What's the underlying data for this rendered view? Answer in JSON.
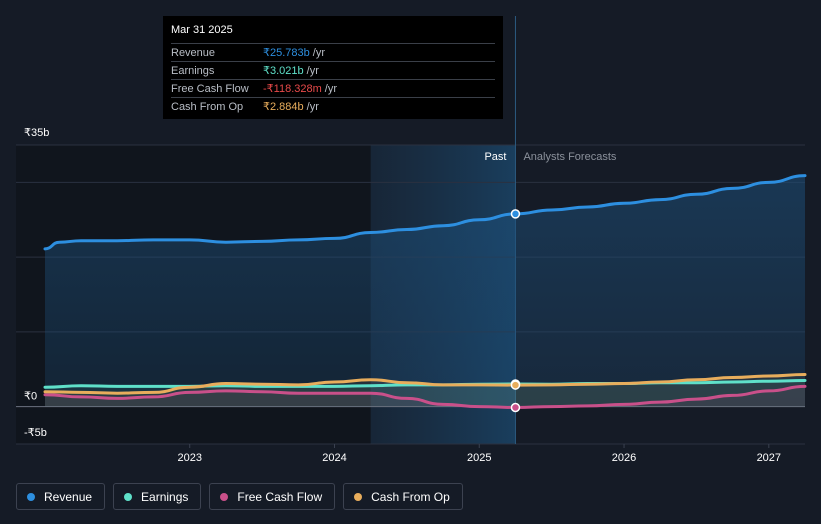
{
  "chart_data": {
    "type": "line",
    "y_unit_prefix": "₹",
    "ylim": [
      -5,
      35
    ],
    "y_ticks": [
      {
        "value": 35,
        "label": "₹35b"
      },
      {
        "value": 0,
        "label": "₹0"
      },
      {
        "value": -5,
        "label": "-₹5b"
      }
    ],
    "x_ticks": [
      {
        "value": 2023.0,
        "label": "2023"
      },
      {
        "value": 2024.0,
        "label": "2024"
      },
      {
        "value": 2025.0,
        "label": "2025"
      },
      {
        "value": 2026.0,
        "label": "2026"
      },
      {
        "value": 2027.0,
        "label": "2027"
      }
    ],
    "xlim": [
      2021.8,
      2027.25
    ],
    "past_label": "Past",
    "forecast_label": "Analysts Forecasts",
    "past_end_x": 2025.25,
    "highlight_start_x": 2024.25,
    "grid": true,
    "legend_position": "bottom-left",
    "series": [
      {
        "name": "Revenue",
        "color": "#2d8fe0",
        "fill": true,
        "points": [
          [
            2022.0,
            21.1
          ],
          [
            2022.1,
            22.0
          ],
          [
            2022.25,
            22.2
          ],
          [
            2022.5,
            22.2
          ],
          [
            2022.75,
            22.3
          ],
          [
            2023.0,
            22.3
          ],
          [
            2023.25,
            22.0
          ],
          [
            2023.5,
            22.1
          ],
          [
            2023.75,
            22.3
          ],
          [
            2024.0,
            22.5
          ],
          [
            2024.25,
            23.3
          ],
          [
            2024.5,
            23.7
          ],
          [
            2024.75,
            24.2
          ],
          [
            2025.0,
            25.0
          ],
          [
            2025.25,
            25.783
          ],
          [
            2025.5,
            26.3
          ],
          [
            2025.75,
            26.7
          ],
          [
            2026.0,
            27.2
          ],
          [
            2026.25,
            27.7
          ],
          [
            2026.5,
            28.4
          ],
          [
            2026.75,
            29.2
          ],
          [
            2027.0,
            30.0
          ],
          [
            2027.25,
            30.9
          ]
        ]
      },
      {
        "name": "Earnings",
        "color": "#5fe0c9",
        "fill": false,
        "points": [
          [
            2022.0,
            2.6
          ],
          [
            2022.25,
            2.8
          ],
          [
            2022.5,
            2.7
          ],
          [
            2022.75,
            2.7
          ],
          [
            2023.0,
            2.7
          ],
          [
            2023.25,
            2.8
          ],
          [
            2023.5,
            2.7
          ],
          [
            2023.75,
            2.7
          ],
          [
            2024.0,
            2.7
          ],
          [
            2024.25,
            2.8
          ],
          [
            2024.5,
            2.9
          ],
          [
            2024.75,
            2.9
          ],
          [
            2025.0,
            3.0
          ],
          [
            2025.25,
            3.021
          ],
          [
            2025.5,
            3.0
          ],
          [
            2025.75,
            3.1
          ],
          [
            2026.0,
            3.1
          ],
          [
            2026.25,
            3.2
          ],
          [
            2026.5,
            3.2
          ],
          [
            2026.75,
            3.3
          ],
          [
            2027.0,
            3.4
          ],
          [
            2027.25,
            3.5
          ]
        ]
      },
      {
        "name": "Free Cash Flow",
        "color": "#c9508a",
        "fill": false,
        "points": [
          [
            2022.0,
            1.6
          ],
          [
            2022.25,
            1.3
          ],
          [
            2022.5,
            1.1
          ],
          [
            2022.75,
            1.3
          ],
          [
            2023.0,
            1.9
          ],
          [
            2023.25,
            2.1
          ],
          [
            2023.5,
            2.0
          ],
          [
            2023.75,
            1.8
          ],
          [
            2024.0,
            1.8
          ],
          [
            2024.25,
            1.8
          ],
          [
            2024.5,
            1.1
          ],
          [
            2024.75,
            0.3
          ],
          [
            2025.0,
            0.0
          ],
          [
            2025.25,
            -0.118
          ],
          [
            2025.5,
            0.0
          ],
          [
            2025.75,
            0.1
          ],
          [
            2026.0,
            0.3
          ],
          [
            2026.25,
            0.6
          ],
          [
            2026.5,
            1.0
          ],
          [
            2026.75,
            1.5
          ],
          [
            2027.0,
            2.1
          ],
          [
            2027.25,
            2.7
          ]
        ]
      },
      {
        "name": "Cash From Op",
        "color": "#e8ad5c",
        "fill": false,
        "points": [
          [
            2022.0,
            2.0
          ],
          [
            2022.25,
            1.9
          ],
          [
            2022.5,
            1.8
          ],
          [
            2022.75,
            1.9
          ],
          [
            2023.0,
            2.6
          ],
          [
            2023.25,
            3.1
          ],
          [
            2023.5,
            3.0
          ],
          [
            2023.75,
            2.9
          ],
          [
            2024.0,
            3.3
          ],
          [
            2024.25,
            3.6
          ],
          [
            2024.5,
            3.2
          ],
          [
            2024.75,
            2.9
          ],
          [
            2025.0,
            2.9
          ],
          [
            2025.25,
            2.884
          ],
          [
            2025.5,
            2.9
          ],
          [
            2025.75,
            3.0
          ],
          [
            2026.0,
            3.1
          ],
          [
            2026.25,
            3.3
          ],
          [
            2026.5,
            3.6
          ],
          [
            2026.75,
            3.9
          ],
          [
            2027.0,
            4.1
          ],
          [
            2027.25,
            4.3
          ]
        ]
      }
    ],
    "tooltip": {
      "date": "Mar 31 2025",
      "rows": [
        {
          "name": "Revenue",
          "value": "₹25.783b",
          "unit": "/yr",
          "color": "#2d8fe0"
        },
        {
          "name": "Earnings",
          "value": "₹3.021b",
          "unit": "/yr",
          "color": "#5fe0c9"
        },
        {
          "name": "Free Cash Flow",
          "value": "-₹118.328m",
          "unit": "/yr",
          "color": "#e84a4a"
        },
        {
          "name": "Cash From Op",
          "value": "₹2.884b",
          "unit": "/yr",
          "color": "#e8ad5c"
        }
      ]
    }
  },
  "legend": {
    "items": [
      {
        "label": "Revenue",
        "color": "#2d8fe0"
      },
      {
        "label": "Earnings",
        "color": "#5fe0c9"
      },
      {
        "label": "Free Cash Flow",
        "color": "#c9508a"
      },
      {
        "label": "Cash From Op",
        "color": "#e8ad5c"
      }
    ]
  }
}
